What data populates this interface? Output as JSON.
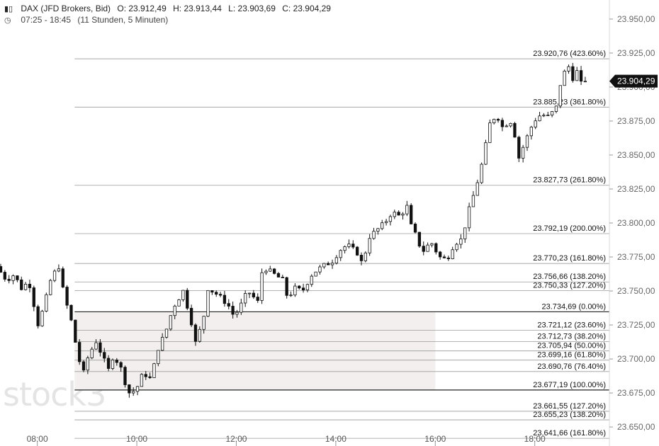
{
  "header": {
    "symbol_icon": "candlestick-icon",
    "instrument": "DAX (JFD Brokers, Bid)",
    "open": "O: 23.912,49",
    "high": "H: 23.913,44",
    "low": "L: 23.903,69",
    "close": "C: 23.904,29",
    "session_icon": "clock-icon",
    "session": "07:25 - 18:45",
    "duration": "(11 Stunden, 5 Minuten)"
  },
  "watermark": "stock3",
  "chart_data": {
    "type": "candlestick",
    "y_axis": {
      "range": [
        23636,
        23964
      ],
      "ticks": [
        23950,
        23925,
        23900,
        23875,
        23850,
        23825,
        23800,
        23775,
        23750,
        23725,
        23700,
        23675,
        23650
      ],
      "tick_labels": [
        "23.950,00",
        "23.925,00",
        "23.900,00",
        "23.875,00",
        "23.850,00",
        "23.825,00",
        "23.800,00",
        "23.775,00",
        "23.750,00",
        "23.725,00",
        "23.700,00",
        "23.675,00",
        "23.650,00"
      ],
      "position": "right"
    },
    "x_axis": {
      "range_hours": [
        7.25,
        19.5
      ],
      "ticks": [
        8,
        10,
        12,
        14,
        16,
        18
      ],
      "tick_labels": [
        "08:00",
        "10:00",
        "12:00",
        "14:00",
        "16:00",
        "18:00"
      ]
    },
    "last_price": {
      "value": 23904.29,
      "label": "23.904,29"
    },
    "fib_levels": [
      {
        "value": 23920.76,
        "label": "23.920,76 (423.60%)"
      },
      {
        "value": 23885.23,
        "label": "23.885,23 (361.80%)"
      },
      {
        "value": 23827.73,
        "label": "23.827,73 (261.80%)"
      },
      {
        "value": 23792.19,
        "label": "23.792,19 (200.00%)"
      },
      {
        "value": 23770.23,
        "label": "23.770,23 (161.80%)"
      },
      {
        "value": 23756.66,
        "label": "23.756,66 (138.20%)"
      },
      {
        "value": 23750.33,
        "label": "23.750,33 (127.20%)"
      },
      {
        "value": 23734.69,
        "label": "23.734,69 (0.00%)"
      },
      {
        "value": 23721.12,
        "label": "23.721,12 (23.60%)"
      },
      {
        "value": 23712.73,
        "label": "23.712,73 (38.20%)"
      },
      {
        "value": 23705.94,
        "label": "23.705,94 (50.00%)"
      },
      {
        "value": 23699.16,
        "label": "23.699,16 (61.80%)"
      },
      {
        "value": 23690.76,
        "label": "23.690,76 (76.40%)"
      },
      {
        "value": 23677.19,
        "label": "23.677,19 (100.00%)"
      },
      {
        "value": 23661.55,
        "label": "23.661,55 (127.20%)"
      },
      {
        "value": 23655.23,
        "label": "23.655,23 (138.20%)"
      },
      {
        "value": 23641.66,
        "label": "23.641,66 (161.80%)"
      }
    ],
    "fib_zone": {
      "from": 23677.19,
      "to": 23734.69,
      "start_hour": 8.75,
      "end_hour": 16.0
    },
    "fib_start_hour": 8.75,
    "candle_interval_minutes": 5,
    "candles_close_path": [
      [
        7.25,
        23768
      ],
      [
        7.45,
        23758
      ],
      [
        7.6,
        23762
      ],
      [
        7.75,
        23752
      ],
      [
        7.9,
        23757
      ],
      [
        8.0,
        23740
      ],
      [
        8.05,
        23722
      ],
      [
        8.2,
        23738
      ],
      [
        8.35,
        23760
      ],
      [
        8.5,
        23768
      ],
      [
        8.6,
        23748
      ],
      [
        8.75,
        23728
      ],
      [
        8.9,
        23700
      ],
      [
        9.0,
        23690
      ],
      [
        9.1,
        23703
      ],
      [
        9.25,
        23713
      ],
      [
        9.4,
        23700
      ],
      [
        9.5,
        23692
      ],
      [
        9.6,
        23703
      ],
      [
        9.75,
        23693
      ],
      [
        9.9,
        23675
      ],
      [
        10.05,
        23677
      ],
      [
        10.2,
        23690
      ],
      [
        10.35,
        23685
      ],
      [
        10.5,
        23708
      ],
      [
        10.65,
        23720
      ],
      [
        10.8,
        23738
      ],
      [
        11.0,
        23750
      ],
      [
        11.15,
        23730
      ],
      [
        11.25,
        23712
      ],
      [
        11.4,
        23728
      ],
      [
        11.5,
        23752
      ],
      [
        11.7,
        23747
      ],
      [
        11.9,
        23740
      ],
      [
        12.0,
        23733
      ],
      [
        12.1,
        23735
      ],
      [
        12.3,
        23750
      ],
      [
        12.5,
        23742
      ],
      [
        12.6,
        23768
      ],
      [
        12.8,
        23763
      ],
      [
        13.0,
        23758
      ],
      [
        13.1,
        23745
      ],
      [
        13.25,
        23752
      ],
      [
        13.4,
        23750
      ],
      [
        13.6,
        23763
      ],
      [
        13.8,
        23768
      ],
      [
        14.0,
        23772
      ],
      [
        14.15,
        23780
      ],
      [
        14.3,
        23784
      ],
      [
        14.5,
        23778
      ],
      [
        14.6,
        23770
      ],
      [
        14.75,
        23790
      ],
      [
        14.9,
        23795
      ],
      [
        15.05,
        23800
      ],
      [
        15.2,
        23808
      ],
      [
        15.35,
        23805
      ],
      [
        15.5,
        23812
      ],
      [
        15.6,
        23795
      ],
      [
        15.7,
        23790
      ],
      [
        15.8,
        23778
      ],
      [
        15.9,
        23783
      ],
      [
        16.0,
        23785
      ],
      [
        16.15,
        23775
      ],
      [
        16.3,
        23773
      ],
      [
        16.45,
        23785
      ],
      [
        16.6,
        23788
      ],
      [
        16.75,
        23810
      ],
      [
        16.9,
        23828
      ],
      [
        17.05,
        23850
      ],
      [
        17.15,
        23872
      ],
      [
        17.3,
        23880
      ],
      [
        17.45,
        23868
      ],
      [
        17.55,
        23878
      ],
      [
        17.65,
        23868
      ],
      [
        17.75,
        23848
      ],
      [
        17.9,
        23862
      ],
      [
        18.05,
        23875
      ],
      [
        18.2,
        23880
      ],
      [
        18.35,
        23878
      ],
      [
        18.5,
        23885
      ],
      [
        18.55,
        23898
      ],
      [
        18.65,
        23910
      ],
      [
        18.75,
        23915
      ],
      [
        18.85,
        23905
      ],
      [
        18.9,
        23912
      ],
      [
        18.95,
        23910
      ],
      [
        19.0,
        23904.29
      ]
    ]
  }
}
